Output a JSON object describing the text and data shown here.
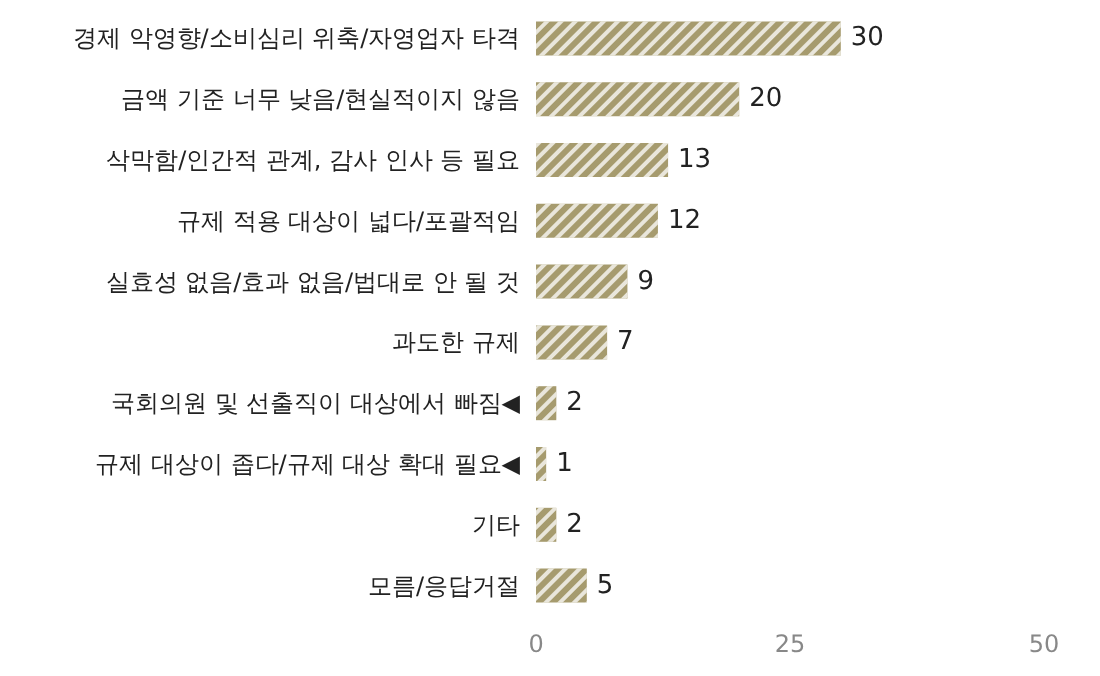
{
  "chart_data": {
    "type": "bar",
    "orientation": "horizontal",
    "categories": [
      "경제 악영향/소비심리 위축/자영업자 타격",
      "금액 기준 너무 낮음/현실적이지 않음",
      "삭막함/인간적 관계, 감사 인사 등 필요",
      "규제 적용 대상이 넓다/포괄적임",
      "실효성 없음/효과 없음/법대로 안 될 것",
      "과도한 규제",
      "국회의원 및 선출직이 대상에서 빠짐◀",
      "규제 대상이 좁다/규제 대상 확대 필요◀",
      "기타",
      "모름/응답거절"
    ],
    "values": [
      30,
      20,
      13,
      12,
      9,
      7,
      2,
      1,
      2,
      5
    ],
    "color": "#a69b6e",
    "xlim": [
      0,
      50
    ],
    "xticks": [
      0,
      25,
      50
    ],
    "data_labels": true,
    "grid": false
  }
}
